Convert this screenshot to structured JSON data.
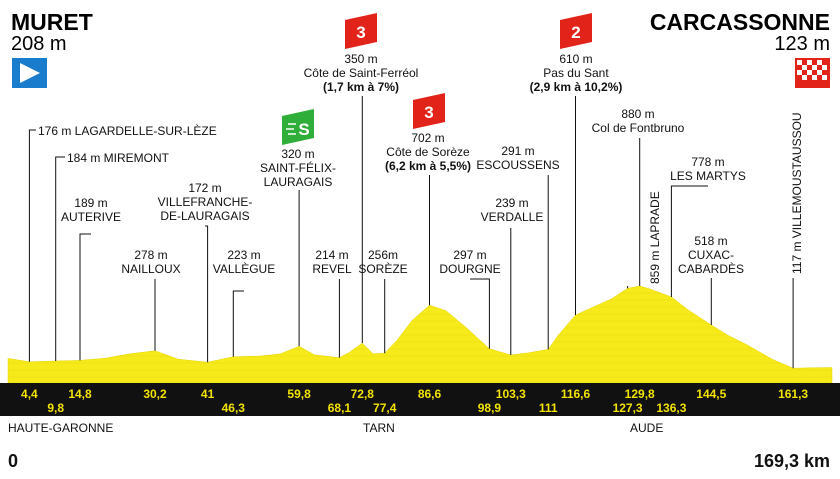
{
  "start": {
    "name": "MURET",
    "alt": "208 m"
  },
  "finish": {
    "name": "CARCASSONNE",
    "alt": "123 m"
  },
  "distance": {
    "start": "0",
    "end": "169,3 km"
  },
  "regions": [
    "HAUTE-GARONNE",
    "TARN",
    "AUDE"
  ],
  "colors": {
    "profile": "#f6ea1a",
    "band": "#111111",
    "km_text": "#f2e300",
    "cat3": "#e2231a",
    "cat2": "#e2231a",
    "sprint": "#2fae3a",
    "start_flag": "#1a7ccc",
    "finish_flag": "#e2231a"
  },
  "climbs": [
    {
      "cat": "3",
      "alt": "350 m",
      "name": "Côte de Saint-Ferréol",
      "detail": "(1,7 km à 7%)",
      "km": 72.8
    },
    {
      "cat": "3",
      "alt": "702 m",
      "name": "Côte de Sorèze",
      "detail": "(6,2 km à 5,5%)",
      "km": 86.6
    },
    {
      "cat": "2",
      "alt": "610 m",
      "name": "Pas du Sant",
      "detail": "(2,9 km à 10,2%)",
      "km": 116.6
    }
  ],
  "sprint": {
    "symbol": "S",
    "alt": "320 m",
    "name1": "SAINT-FÉLIX-",
    "name2": "LAURAGAIS",
    "km": 59.8
  },
  "places": [
    {
      "text": "176 m LAGARDELLE-SUR-LÈZE",
      "km": 4.4
    },
    {
      "text": "184 m MIREMONT",
      "km": 9.8
    },
    {
      "alt": "189 m",
      "name": "AUTERIVE",
      "km": 14.8
    },
    {
      "alt": "278 m",
      "name": "NAILLOUX",
      "km": 30.2
    },
    {
      "alt": "172 m",
      "name1": "VILLEFRANCHE-",
      "name2": "DE-LAURAGAIS",
      "km": 41
    },
    {
      "alt": "223 m",
      "name": "VALLÈGUE",
      "km": 46.3
    },
    {
      "alt": "214 m",
      "name": "REVEL",
      "km": 68.1
    },
    {
      "alt": "256m",
      "name": "SORÈZE",
      "km": 77.4
    },
    {
      "alt": "297 m",
      "name": "DOURGNE",
      "km": 98.9
    },
    {
      "alt": "239 m",
      "name": "VERDALLE",
      "km": 103.3
    },
    {
      "alt": "291 m",
      "name": "ESCOUSSENS",
      "km": 111
    },
    {
      "alt": "880 m",
      "name": "Col de Fontbruno",
      "km": 129.8
    },
    {
      "text": "859 m LAPRADE",
      "km": 127.3
    },
    {
      "alt": "778 m",
      "name": "LES MARTYS",
      "km": 136.3
    },
    {
      "alt": "518 m",
      "name1": "CUXAC-",
      "name2": "CABARDÈS",
      "km": 144.5
    },
    {
      "text": "117 m VILLEMOUSTAUSSOU",
      "km": 161.3
    }
  ],
  "km_marks": [
    {
      "label": "4,4",
      "km": 4.4,
      "row": 1
    },
    {
      "label": "9,8",
      "km": 9.8,
      "row": 2
    },
    {
      "label": "14,8",
      "km": 14.8,
      "row": 1
    },
    {
      "label": "30,2",
      "km": 30.2,
      "row": 1
    },
    {
      "label": "41",
      "km": 41,
      "row": 1
    },
    {
      "label": "46,3",
      "km": 46.3,
      "row": 2
    },
    {
      "label": "59,8",
      "km": 59.8,
      "row": 1
    },
    {
      "label": "68,1",
      "km": 68.1,
      "row": 2
    },
    {
      "label": "72,8",
      "km": 72.8,
      "row": 1
    },
    {
      "label": "77,4",
      "km": 77.4,
      "row": 2
    },
    {
      "label": "86,6",
      "km": 86.6,
      "row": 1
    },
    {
      "label": "98,9",
      "km": 98.9,
      "row": 2
    },
    {
      "label": "103,3",
      "km": 103.3,
      "row": 1
    },
    {
      "label": "111",
      "km": 111,
      "row": 2
    },
    {
      "label": "116,6",
      "km": 116.6,
      "row": 1
    },
    {
      "label": "127,3",
      "km": 127.3,
      "row": 2
    },
    {
      "label": "129,8",
      "km": 129.8,
      "row": 1
    },
    {
      "label": "136,3",
      "km": 136.3,
      "row": 2
    },
    {
      "label": "144,5",
      "km": 144.5,
      "row": 1
    },
    {
      "label": "161,3",
      "km": 161.3,
      "row": 1
    }
  ],
  "profile": [
    [
      0,
      208
    ],
    [
      4.4,
      176
    ],
    [
      9.8,
      184
    ],
    [
      14.8,
      189
    ],
    [
      20,
      210
    ],
    [
      25,
      250
    ],
    [
      30.2,
      278
    ],
    [
      35,
      200
    ],
    [
      41,
      172
    ],
    [
      46.3,
      223
    ],
    [
      52,
      230
    ],
    [
      56,
      250
    ],
    [
      59.8,
      320
    ],
    [
      63,
      240
    ],
    [
      68.1,
      214
    ],
    [
      70,
      260
    ],
    [
      72.8,
      350
    ],
    [
      75,
      250
    ],
    [
      77.4,
      256
    ],
    [
      80,
      380
    ],
    [
      83,
      560
    ],
    [
      86.6,
      702
    ],
    [
      90,
      650
    ],
    [
      94,
      500
    ],
    [
      98.9,
      297
    ],
    [
      103.3,
      239
    ],
    [
      107,
      260
    ],
    [
      111,
      291
    ],
    [
      113,
      420
    ],
    [
      116.6,
      610
    ],
    [
      120,
      680
    ],
    [
      124,
      760
    ],
    [
      127.3,
      859
    ],
    [
      129.8,
      880
    ],
    [
      132,
      850
    ],
    [
      136.3,
      778
    ],
    [
      140,
      650
    ],
    [
      144.5,
      518
    ],
    [
      148,
      420
    ],
    [
      152,
      330
    ],
    [
      157,
      200
    ],
    [
      161.3,
      117
    ],
    [
      165,
      120
    ],
    [
      169.3,
      123
    ]
  ]
}
